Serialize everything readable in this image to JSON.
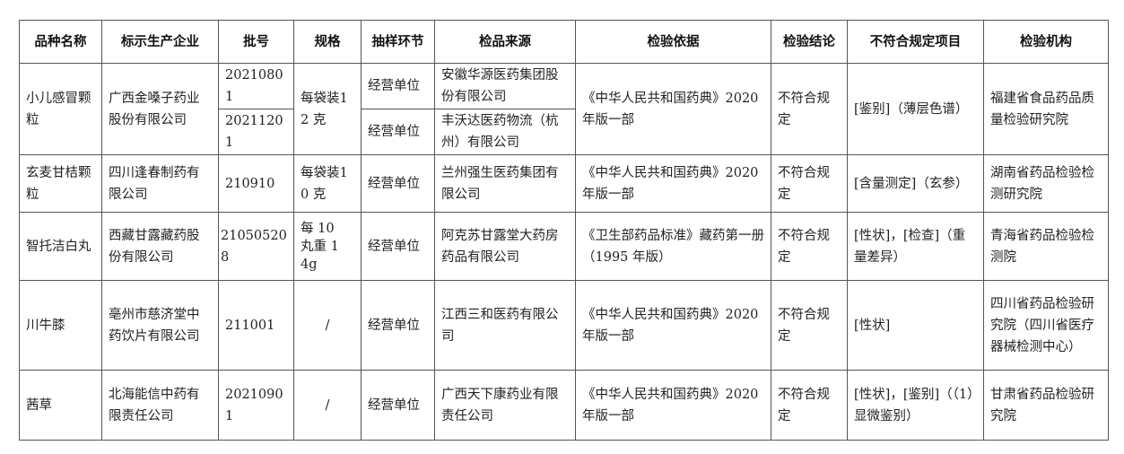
{
  "headers": [
    "品种名称",
    "标示生产企业",
    "批号",
    "规格",
    "抽样环节",
    "检品来源",
    "检验依据",
    "检验结论",
    "不符合规定项目",
    "检验机构"
  ],
  "rows": [
    {
      "name": "小儿感冒颗粒",
      "maker": "广西金嗓子药业股份有限公司",
      "batches": [
        "20210801",
        "20211201"
      ],
      "spec": "每袋装12 克",
      "stages": [
        "经营单位",
        "经营单位"
      ],
      "sources": [
        "安徽华源医药集团股份有限公司",
        "丰沃达医药物流（杭州）有限公司"
      ],
      "basis": "《中华人民共和国药典》2020 年版一部",
      "conclusion": "不符合规定",
      "items": "[鉴别]（薄层色谱）",
      "agency": "福建省食品药品质量检验研究院"
    },
    {
      "name": "玄麦甘桔颗粒",
      "maker": "四川逢春制药有限公司",
      "batch": "210910",
      "spec": "每袋装10 克",
      "stage": "经营单位",
      "source": "兰州强生医药集团有限公司",
      "basis": "《中华人民共和国药典》2020 年版一部",
      "conclusion": "不符合规定",
      "items": "[含量测定]（玄参）",
      "agency": "湖南省药品检验检测研究院"
    },
    {
      "name": "智托洁白丸",
      "maker": "西藏甘露藏药股份有限公司",
      "batch": "210505208",
      "spec": "每 10 丸重 14g",
      "stage": "经营单位",
      "source": "阿克苏甘露堂大药房药品有限公司",
      "basis": "《卫生部药品标准》藏药第一册（1995 年版）",
      "conclusion": "不符合规定",
      "items": "[性状]，[检查]（重量差异）",
      "agency": "青海省药品检验检测院"
    },
    {
      "name": "川牛膝",
      "maker": "亳州市慈济堂中药饮片有限公司",
      "batch": "211001",
      "spec": "/",
      "stage": "经营单位",
      "source": "江西三和医药有限公司",
      "basis": "《中华人民共和国药典》2020 年版一部",
      "conclusion": "不符合规定",
      "items": "[性状]",
      "agency": "四川省药品检验研究院（四川省医疗器械检测中心）"
    },
    {
      "name": "茜草",
      "maker": "北海能信中药有限责任公司",
      "batch": "20210901",
      "spec": "/",
      "stage": "经营单位",
      "source": "广西天下康药业有限责任公司",
      "basis": "《中华人民共和国药典》2020 年版一部",
      "conclusion": "不符合规定",
      "items": "[性状]，[鉴别]（（1）显微鉴别）",
      "agency": "甘肃省药品检验研究院"
    }
  ]
}
